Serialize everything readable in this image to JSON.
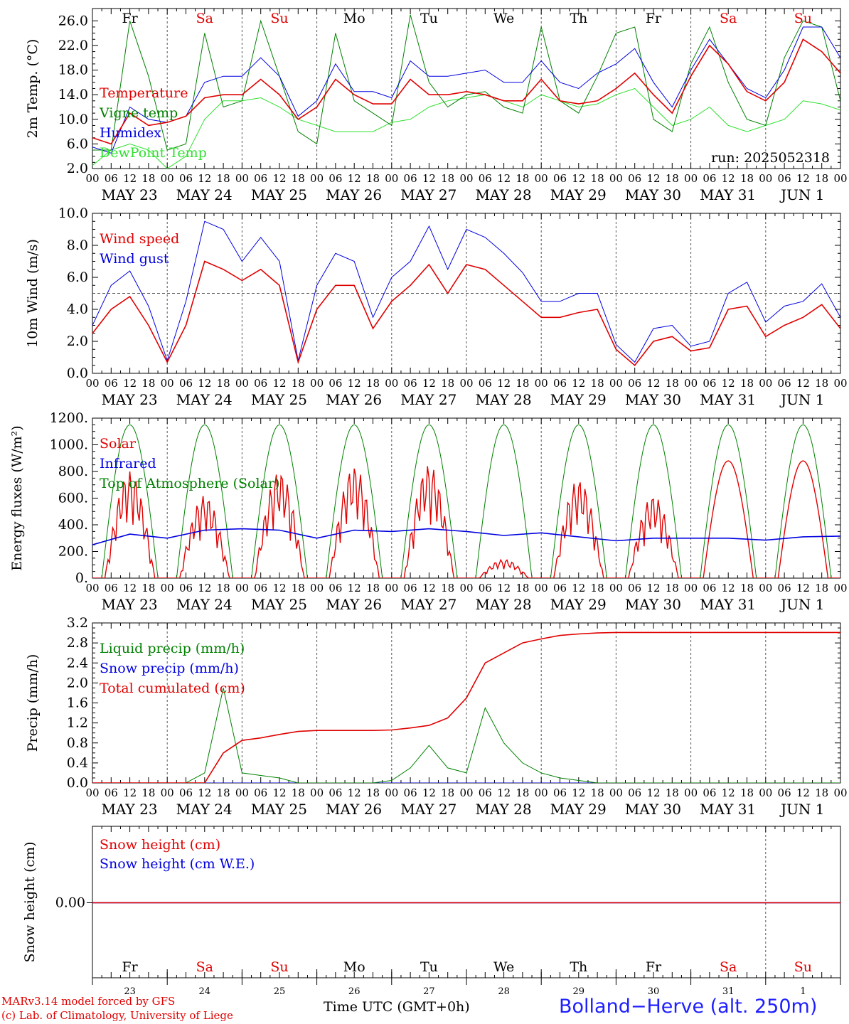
{
  "run_label": "run: 2025052318",
  "days": [
    "Fr",
    "Sa",
    "Su",
    "Mo",
    "Tu",
    "We",
    "Th",
    "Fr",
    "Sa",
    "Su"
  ],
  "day_colors": [
    "#000000",
    "#e00000",
    "#e00000",
    "#000000",
    "#000000",
    "#000000",
    "#000000",
    "#000000",
    "#e00000",
    "#e00000"
  ],
  "dates": [
    "MAY 23",
    "MAY 24",
    "MAY 25",
    "MAY 26",
    "MAY 27",
    "MAY 28",
    "MAY 29",
    "MAY 30",
    "MAY 31",
    "JUN  1"
  ],
  "day_numbers": [
    "23",
    "24",
    "25",
    "26",
    "27",
    "28",
    "29",
    "30",
    "31",
    "1"
  ],
  "hour_ticks": [
    "00",
    "06",
    "12",
    "18"
  ],
  "footer": {
    "model": "MARv3.14 model forced by GFS",
    "lab": "(c) Lab. of Climatology, University of Liege",
    "time_label": "Time UTC (GMT+0h)",
    "station": "Bolland−Herve (alt. 250m)"
  },
  "colors": {
    "red": "#e00000",
    "green": "#008000",
    "blue": "#0000e0",
    "lightgreen": "#30e030",
    "grid": "#555555"
  },
  "chart_data": [
    {
      "type": "line",
      "ylabel": "2m Temp. (°C)",
      "ylim": [
        2,
        28
      ],
      "yticks": [
        "2.0",
        "6.0",
        "10.0",
        "14.0",
        "18.0",
        "22.0",
        "26.0"
      ],
      "ytick_values": [
        2,
        6,
        10,
        14,
        18,
        22,
        26
      ],
      "x_hours": [
        0,
        6,
        12,
        18,
        24,
        30,
        36,
        42,
        48,
        54,
        60,
        66,
        72,
        78,
        84,
        90,
        96,
        102,
        108,
        114,
        120,
        126,
        132,
        138,
        144,
        150,
        156,
        162,
        168,
        174,
        180,
        186,
        192,
        198,
        204,
        210,
        216,
        222,
        228,
        234,
        240
      ],
      "series": [
        {
          "name": "Temperature",
          "color": "red",
          "values": [
            7,
            6,
            11,
            9,
            9.5,
            10.5,
            13.5,
            14,
            14,
            16.5,
            14,
            10,
            12,
            16.5,
            14,
            12.5,
            12.5,
            16.5,
            14,
            14,
            14.5,
            14,
            13,
            13,
            16.5,
            13,
            12.5,
            13,
            15,
            17.5,
            14,
            11,
            17,
            22,
            19,
            14.5,
            13,
            16,
            23,
            21,
            17.5
          ]
        },
        {
          "name": "Vigne temp",
          "color": "green",
          "values": [
            5,
            5,
            26,
            17,
            5,
            6,
            24,
            12,
            13,
            26,
            17,
            8,
            6,
            24,
            13,
            11,
            9,
            27,
            16,
            12,
            14,
            14.5,
            12,
            11,
            25,
            13,
            11,
            17,
            24,
            25,
            10,
            8,
            19,
            25,
            16,
            10,
            9,
            20,
            26,
            25,
            13
          ]
        },
        {
          "name": "Humidex",
          "color": "blue",
          "values": [
            5.5,
            4.5,
            12,
            10,
            9.5,
            10.5,
            16,
            17,
            17,
            20,
            17,
            10.5,
            13,
            19,
            14.5,
            14.5,
            13.5,
            19.5,
            17,
            17,
            17.5,
            18,
            16,
            16,
            19.5,
            16,
            15,
            17.5,
            19,
            21.5,
            16,
            12,
            18,
            23,
            19,
            15,
            13.5,
            18,
            25,
            25,
            20
          ]
        },
        {
          "name": "DewPoint Temp",
          "color": "lightgreen",
          "values": [
            2.5,
            5,
            6,
            5,
            2,
            4,
            10,
            13,
            13,
            13.5,
            12,
            10,
            9,
            8,
            8,
            8,
            9.5,
            10,
            12,
            13,
            13.5,
            14,
            13,
            12,
            14,
            13,
            12,
            12.5,
            14,
            15,
            12,
            9,
            10,
            12,
            9,
            8,
            9,
            10,
            13,
            12.5,
            11.5
          ]
        }
      ]
    },
    {
      "type": "line",
      "ylabel": "10m Wind (m/s)",
      "ylim": [
        0,
        10
      ],
      "yticks": [
        "0.0",
        "2.0",
        "4.0",
        "6.0",
        "8.0",
        "10.0"
      ],
      "ytick_values": [
        0,
        2,
        4,
        6,
        8,
        10
      ],
      "ref_line": 5,
      "x_hours": [
        0,
        6,
        12,
        18,
        24,
        30,
        36,
        42,
        48,
        54,
        60,
        66,
        72,
        78,
        84,
        90,
        96,
        102,
        108,
        114,
        120,
        126,
        132,
        138,
        144,
        150,
        156,
        162,
        168,
        174,
        180,
        186,
        192,
        198,
        204,
        210,
        216,
        222,
        228,
        234,
        240
      ],
      "series": [
        {
          "name": "Wind speed",
          "color": "red",
          "values": [
            2.5,
            4,
            4.8,
            3,
            0.7,
            3,
            7,
            6.5,
            5.8,
            6.5,
            5.5,
            0.7,
            4,
            5.5,
            5.5,
            2.8,
            4.5,
            5.5,
            6.8,
            5,
            6.8,
            6.5,
            5.5,
            4.5,
            3.5,
            3.5,
            3.8,
            4,
            1.5,
            0.5,
            2,
            2.3,
            1.4,
            1.6,
            4,
            4.2,
            2.3,
            3,
            3.5,
            4.3,
            2.8
          ]
        },
        {
          "name": "Wind gust",
          "color": "blue",
          "values": [
            3,
            5.5,
            6.4,
            4.2,
            0.8,
            4.5,
            9.5,
            9,
            7,
            8.5,
            7,
            0.8,
            5.5,
            7.5,
            7,
            3.5,
            6,
            7,
            9.2,
            6.5,
            9,
            8.5,
            7.5,
            6.3,
            4.5,
            4.5,
            5,
            5,
            1.8,
            0.7,
            2.8,
            3,
            1.7,
            2,
            5,
            5.7,
            3.2,
            4.2,
            4.5,
            5.6,
            3.5
          ]
        }
      ]
    },
    {
      "type": "line",
      "ylabel": "Energy fluxes (W/m²)",
      "ylim": [
        0,
        1200
      ],
      "yticks": [
        "0.",
        "200.",
        "400.",
        "600.",
        "800.",
        "1000.",
        "1200."
      ],
      "ytick_values": [
        0,
        200,
        400,
        600,
        800,
        1000,
        1200
      ],
      "series": [
        {
          "name": "Solar",
          "color": "red",
          "peaks": [
            800,
            620,
            800,
            840,
            850,
            140,
            740,
            620,
            880,
            880
          ]
        },
        {
          "name": "Infrared",
          "color": "blue",
          "values": [
            250,
            330,
            300,
            360,
            370,
            360,
            300,
            360,
            350,
            370,
            350,
            320,
            340,
            310,
            280,
            300,
            300,
            300,
            285,
            310,
            315
          ]
        },
        {
          "name": "Top of Atmosphere (Solar)",
          "color": "green",
          "peak": 1150
        }
      ]
    },
    {
      "type": "line",
      "ylabel": "Precip (mm/h)",
      "ylim": [
        0,
        3.2
      ],
      "yticks": [
        "0.0",
        "0.4",
        "0.8",
        "1.2",
        "1.6",
        "2.0",
        "2.4",
        "2.8",
        "3.2"
      ],
      "ytick_values": [
        0,
        0.4,
        0.8,
        1.2,
        1.6,
        2.0,
        2.4,
        2.8,
        3.2
      ],
      "x_hours": [
        0,
        6,
        12,
        18,
        24,
        30,
        36,
        42,
        48,
        54,
        60,
        66,
        72,
        78,
        84,
        90,
        96,
        102,
        108,
        114,
        120,
        126,
        132,
        138,
        144,
        150,
        156,
        162,
        168,
        174,
        180,
        186,
        192,
        198,
        204,
        210,
        216,
        222,
        228,
        234,
        240
      ],
      "series": [
        {
          "name": "Liquid precip (mm/h)",
          "color": "green",
          "values": [
            0,
            0,
            0,
            0,
            0,
            0,
            0.2,
            1.9,
            0.2,
            0.15,
            0.1,
            0,
            0,
            0,
            0,
            0,
            0.05,
            0.3,
            0.75,
            0.3,
            0.2,
            1.5,
            0.8,
            0.4,
            0.2,
            0.1,
            0.05,
            0,
            0,
            0,
            0,
            0,
            0,
            0,
            0,
            0,
            0,
            0,
            0,
            0,
            0
          ]
        },
        {
          "name": "Snow precip (mm/h)",
          "color": "blue",
          "values": [
            0,
            0,
            0,
            0,
            0,
            0,
            0,
            0,
            0,
            0,
            0,
            0,
            0,
            0,
            0,
            0,
            0,
            0,
            0,
            0,
            0,
            0,
            0,
            0,
            0,
            0,
            0,
            0,
            0,
            0,
            0,
            0,
            0,
            0,
            0,
            0,
            0,
            0,
            0,
            0,
            0
          ]
        },
        {
          "name": "Total cumulated (cm)",
          "color": "red",
          "values": [
            0,
            0,
            0,
            0,
            0,
            0,
            0,
            0.6,
            0.85,
            0.9,
            0.97,
            1.03,
            1.05,
            1.05,
            1.05,
            1.05,
            1.06,
            1.1,
            1.15,
            1.3,
            1.7,
            2.4,
            2.6,
            2.8,
            2.88,
            2.95,
            2.98,
            3.0,
            3.01,
            3.01,
            3.01,
            3.01,
            3.01,
            3.01,
            3.01,
            3.01,
            3.01,
            3.01,
            3.01,
            3.01,
            3.01
          ]
        }
      ]
    },
    {
      "type": "line",
      "ylabel": "Snow height (cm)",
      "yticks": [
        "0.00"
      ],
      "series": [
        {
          "name": "Snow height (cm)",
          "color": "red",
          "values": [
            0,
            0
          ]
        },
        {
          "name": "Snow height (cm W.E.)",
          "color": "blue",
          "values": [
            0,
            0
          ]
        }
      ]
    }
  ]
}
